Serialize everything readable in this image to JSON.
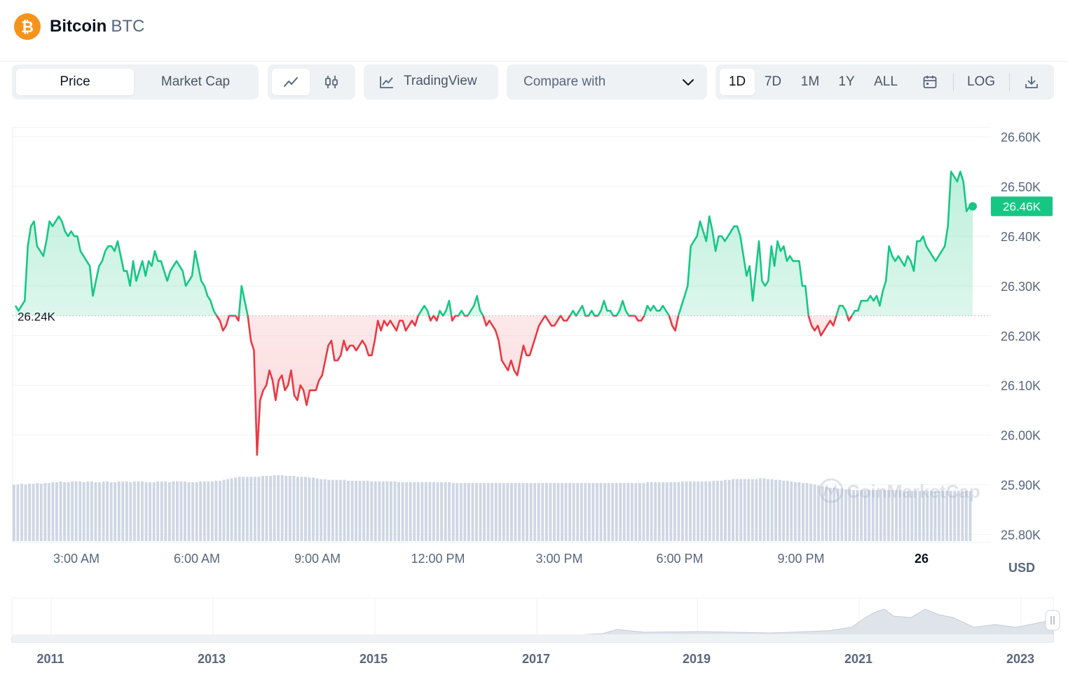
{
  "header": {
    "coin_name": "Bitcoin",
    "coin_symbol": "BTC",
    "logo_glyph": "₿"
  },
  "toolbar": {
    "mode_tabs": [
      {
        "label": "Price",
        "active": true
      },
      {
        "label": "Market Cap",
        "active": false
      }
    ],
    "chart_type_icons": [
      "line-chart-icon",
      "candlestick-icon"
    ],
    "tradingview_label": "TradingView",
    "compare_label": "Compare with",
    "ranges": [
      {
        "label": "1D",
        "active": true
      },
      {
        "label": "7D"
      },
      {
        "label": "1M"
      },
      {
        "label": "1Y"
      },
      {
        "label": "ALL"
      }
    ],
    "log_label": "LOG"
  },
  "chart_data": {
    "type": "line",
    "currency": "USD",
    "yticks": [
      "26.60K",
      "26.50K",
      "26.40K",
      "26.30K",
      "26.20K",
      "26.10K",
      "26.00K",
      "25.90K",
      "25.80K"
    ],
    "ylim": [
      25.785,
      26.62
    ],
    "xticks": [
      "3:00 AM",
      "6:00 AM",
      "9:00 AM",
      "12:00 PM",
      "3:00 PM",
      "6:00 PM",
      "9:00 PM",
      "26"
    ],
    "baseline_value": 26.24,
    "baseline_label": "26.24K",
    "current_value": 26.46,
    "current_label": "26.46K",
    "watermark": "CoinMarketCap",
    "up_color": "#16c784",
    "down_color": "#ea3943",
    "series": [
      {
        "values": [
          26.26,
          26.25,
          26.26,
          26.27,
          26.38,
          26.42,
          26.43,
          26.38,
          26.37,
          26.36,
          26.39,
          26.43,
          26.42,
          26.43,
          26.44,
          26.43,
          26.41,
          26.4,
          26.41,
          26.4,
          26.4,
          26.37,
          26.36,
          26.35,
          26.34,
          26.28,
          26.31,
          26.34,
          26.35,
          26.37,
          26.38,
          26.38,
          26.37,
          26.39,
          26.36,
          26.33,
          26.33,
          26.3,
          26.35,
          26.31,
          26.33,
          26.35,
          26.32,
          26.35,
          26.34,
          26.37,
          26.35,
          26.35,
          26.33,
          26.31,
          26.33,
          26.34,
          26.35,
          26.34,
          26.33,
          26.3,
          26.31,
          26.32,
          26.37,
          26.34,
          26.31,
          26.3,
          26.28,
          26.27,
          26.25,
          26.24,
          26.23,
          26.21,
          26.22,
          26.24,
          26.24,
          26.24,
          26.23,
          26.3,
          26.27,
          26.24,
          26.19,
          26.17,
          25.96,
          26.07,
          26.09,
          26.1,
          26.13,
          26.11,
          26.07,
          26.11,
          26.12,
          26.09,
          26.1,
          26.13,
          26.08,
          26.07,
          26.1,
          26.09,
          26.06,
          26.09,
          26.09,
          26.09,
          26.11,
          26.12,
          26.15,
          26.18,
          26.19,
          26.15,
          26.15,
          26.16,
          26.19,
          26.17,
          26.18,
          26.18,
          26.17,
          26.18,
          26.19,
          26.18,
          26.16,
          26.16,
          26.19,
          26.23,
          26.21,
          26.23,
          26.22,
          26.23,
          26.22,
          26.21,
          26.23,
          26.23,
          26.21,
          26.22,
          26.23,
          26.22,
          26.24,
          26.25,
          26.26,
          26.25,
          26.23,
          26.24,
          26.23,
          26.25,
          26.24,
          26.25,
          26.27,
          26.23,
          26.24,
          26.24,
          26.25,
          26.24,
          26.24,
          26.25,
          26.26,
          26.28,
          26.25,
          26.24,
          26.22,
          26.23,
          26.22,
          26.21,
          26.19,
          26.15,
          26.14,
          26.13,
          26.15,
          26.13,
          26.12,
          26.15,
          26.18,
          26.16,
          26.16,
          26.18,
          26.2,
          26.22,
          26.23,
          26.24,
          26.23,
          26.22,
          26.22,
          26.23,
          26.24,
          26.23,
          26.23,
          26.24,
          26.25,
          26.24,
          26.25,
          26.26,
          26.24,
          26.24,
          26.25,
          26.24,
          26.24,
          26.25,
          26.27,
          26.25,
          26.25,
          26.24,
          26.24,
          26.25,
          26.27,
          26.25,
          26.24,
          26.24,
          26.24,
          26.23,
          26.23,
          26.24,
          26.26,
          26.25,
          26.26,
          26.25,
          26.25,
          26.26,
          26.25,
          26.24,
          26.22,
          26.21,
          26.24,
          26.26,
          26.28,
          26.3,
          26.38,
          26.39,
          26.4,
          26.43,
          26.41,
          26.39,
          26.44,
          26.41,
          26.37,
          26.4,
          26.4,
          26.39,
          26.4,
          26.41,
          26.42,
          26.42,
          26.4,
          26.36,
          26.32,
          26.34,
          26.27,
          26.33,
          26.39,
          26.31,
          26.3,
          26.31,
          26.38,
          26.34,
          26.39,
          26.37,
          26.38,
          26.35,
          26.36,
          26.35,
          26.35,
          26.35,
          26.3,
          26.3,
          26.24,
          26.22,
          26.21,
          26.22,
          26.2,
          26.21,
          26.22,
          26.23,
          26.22,
          26.24,
          26.26,
          26.26,
          26.25,
          26.23,
          26.24,
          26.25,
          26.25,
          26.27,
          26.27,
          26.27,
          26.28,
          26.27,
          26.28,
          26.26,
          26.29,
          26.31,
          26.38,
          26.36,
          26.35,
          26.36,
          26.35,
          26.34,
          26.36,
          26.35,
          26.33,
          26.39,
          26.39,
          26.4,
          26.38,
          26.37,
          26.36,
          26.35,
          26.36,
          26.37,
          26.38,
          26.42,
          26.53,
          26.52,
          26.51,
          26.53,
          26.51,
          26.45,
          26.46,
          26.46
        ]
      },
      {
        "name": "Volume",
        "values": [
          0.72,
          0.72,
          0.73,
          0.72,
          0.73,
          0.73,
          0.74,
          0.73,
          0.74,
          0.74,
          0.75,
          0.75,
          0.76,
          0.75,
          0.75,
          0.76,
          0.76,
          0.76,
          0.75,
          0.76,
          0.76,
          0.75,
          0.75,
          0.76,
          0.76,
          0.75,
          0.75,
          0.76,
          0.76,
          0.76,
          0.75,
          0.76,
          0.76,
          0.76,
          0.75,
          0.75,
          0.75,
          0.76,
          0.76,
          0.76,
          0.75,
          0.76,
          0.76,
          0.76,
          0.76,
          0.75,
          0.75,
          0.75,
          0.76,
          0.76,
          0.76,
          0.76,
          0.77,
          0.77,
          0.78,
          0.79,
          0.8,
          0.81,
          0.82,
          0.82,
          0.82,
          0.82,
          0.82,
          0.82,
          0.83,
          0.83,
          0.83,
          0.84,
          0.84,
          0.84,
          0.83,
          0.83,
          0.83,
          0.82,
          0.82,
          0.82,
          0.81,
          0.81,
          0.8,
          0.79,
          0.79,
          0.78,
          0.78,
          0.78,
          0.78,
          0.78,
          0.77,
          0.77,
          0.77,
          0.77,
          0.77,
          0.77,
          0.76,
          0.76,
          0.76,
          0.76,
          0.76,
          0.76,
          0.76,
          0.75,
          0.75,
          0.75,
          0.75,
          0.75,
          0.75,
          0.75,
          0.75,
          0.75,
          0.75,
          0.75,
          0.75,
          0.75,
          0.75,
          0.74,
          0.74,
          0.74,
          0.74,
          0.74,
          0.74,
          0.74,
          0.74,
          0.74,
          0.74,
          0.74,
          0.74,
          0.74,
          0.74,
          0.74,
          0.74,
          0.74,
          0.74,
          0.74,
          0.74,
          0.74,
          0.74,
          0.74,
          0.74,
          0.74,
          0.74,
          0.74,
          0.74,
          0.74,
          0.74,
          0.74,
          0.74,
          0.74,
          0.74,
          0.74,
          0.74,
          0.74,
          0.74,
          0.74,
          0.74,
          0.74,
          0.74,
          0.74,
          0.74,
          0.74,
          0.74,
          0.74,
          0.74,
          0.74,
          0.74,
          0.75,
          0.75,
          0.75,
          0.75,
          0.75,
          0.75,
          0.75,
          0.75,
          0.75,
          0.76,
          0.76,
          0.76,
          0.76,
          0.76,
          0.76,
          0.76,
          0.76,
          0.77,
          0.77,
          0.77,
          0.78,
          0.78,
          0.79,
          0.79,
          0.79,
          0.79,
          0.79,
          0.79,
          0.79,
          0.8,
          0.8,
          0.79,
          0.79,
          0.78,
          0.78,
          0.77,
          0.77,
          0.76,
          0.75,
          0.75,
          0.74,
          0.74,
          0.73,
          0.72,
          0.71,
          0.7,
          0.69,
          0.68,
          0.68,
          0.67,
          0.67,
          0.66,
          0.66,
          0.65,
          0.65,
          0.65,
          0.65,
          0.65,
          0.65,
          0.65,
          0.65,
          0.65,
          0.65,
          0.65,
          0.65,
          0.65,
          0.64,
          0.64,
          0.64,
          0.64,
          0.64,
          0.64,
          0.64,
          0.64,
          0.64,
          0.64,
          0.64,
          0.64,
          0.64,
          0.64,
          0.64,
          0.64,
          0.64,
          0.64
        ]
      }
    ]
  },
  "navigator": {
    "years": [
      "2011",
      "2013",
      "2015",
      "2017",
      "2019",
      "2021",
      "2023"
    ]
  }
}
